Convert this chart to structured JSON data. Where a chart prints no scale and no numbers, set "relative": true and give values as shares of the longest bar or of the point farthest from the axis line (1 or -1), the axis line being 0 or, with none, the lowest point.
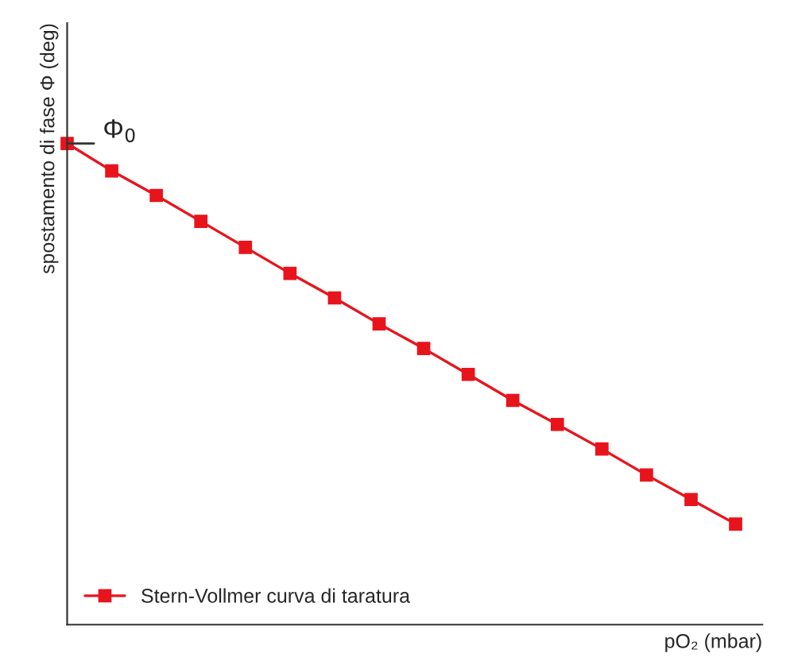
{
  "chart_data": {
    "type": "line",
    "relative": true,
    "xlabel": "pO₂ (mbar)",
    "ylabel": "spostamento di fase Φ (deg)",
    "categories": [
      null,
      null,
      null,
      null,
      null,
      null,
      null,
      null,
      null,
      null,
      null,
      null,
      null,
      null,
      null,
      null
    ],
    "series": [
      {
        "name": "Stern-Vollmer curva di taratura",
        "color": "#e8141c",
        "values": [
          1,
          0.943,
          0.892,
          0.838,
          0.784,
          0.73,
          0.679,
          0.625,
          0.574,
          0.52,
          0.466,
          0.416,
          0.365,
          0.311,
          0.26,
          0.209
        ]
      }
    ],
    "annotations": [
      "Φ$_{0}$"
    ],
    "marker": "square",
    "line_style": "solid",
    "legend": "bottom left",
    "grid": false,
    "tick_labels": false
  }
}
